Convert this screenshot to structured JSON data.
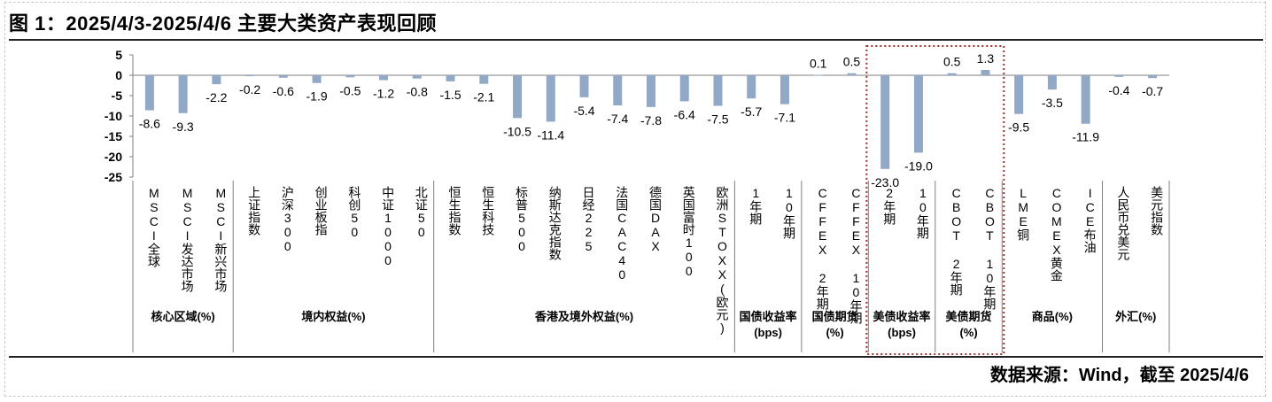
{
  "header": {
    "title": "图 1：2025/4/3-2025/4/6 主要大类资产表现回顾",
    "source": "数据来源：Wind，截至 2025/4/6"
  },
  "colors": {
    "bar": "#91a9c6",
    "highlight_border": "#a03030",
    "axis": "#7f7f7f"
  },
  "chart_data": {
    "type": "bar",
    "title": "",
    "xlabel": "",
    "ylabel": "",
    "ylim": [
      -25,
      5
    ],
    "yticks": [
      5,
      0,
      -5,
      -10,
      -15,
      -20,
      -25
    ],
    "grid": false,
    "legend": "none",
    "groups": [
      {
        "name": "核心区域(%)",
        "categories": [
          "MSCI全球",
          "MSCI发达市场",
          "MSCI新兴市场"
        ],
        "values": [
          -8.6,
          -9.3,
          -2.2
        ]
      },
      {
        "name": "境内权益(%)",
        "categories": [
          "上证指数",
          "沪深300",
          "创业板指",
          "科创50",
          "中证1000",
          "北证50"
        ],
        "values": [
          -0.2,
          -0.6,
          -1.9,
          -0.5,
          -1.2,
          -0.8
        ]
      },
      {
        "name": "香港及境外权益(%)",
        "categories": [
          "恒生指数",
          "恒生科技",
          "标普500",
          "纳斯达克指数",
          "日经225",
          "法国CAC40",
          "德国DAX",
          "英国富时100",
          "欧洲STOXX(欧元)"
        ],
        "values": [
          -1.5,
          -2.1,
          -10.5,
          -11.4,
          -5.4,
          -7.4,
          -7.8,
          -6.4,
          -7.5
        ]
      },
      {
        "name": "国债收益率(bps)",
        "categories": [
          "1年期",
          "10年期"
        ],
        "values": [
          -5.7,
          -7.1
        ]
      },
      {
        "name": "国债期货(%)",
        "categories": [
          "CFFEX 2年期",
          "CFFEX 10年期"
        ],
        "values": [
          0.1,
          0.5
        ]
      },
      {
        "name": "美债收益率(bps)",
        "categories": [
          "2年期",
          "10年期"
        ],
        "values": [
          -23.0,
          -19.0
        ]
      },
      {
        "name": "美债期货(%)",
        "categories": [
          "CBOT 2年期",
          "CBOT 10年期"
        ],
        "values": [
          0.5,
          1.3
        ]
      },
      {
        "name": "商品(%)",
        "categories": [
          "LME铜",
          "COMEX黄金",
          "ICE布油"
        ],
        "values": [
          -9.5,
          -3.5,
          -11.9
        ]
      },
      {
        "name": "外汇(%)",
        "categories": [
          "人民币兑美元",
          "美元指数"
        ],
        "values": [
          -0.4,
          -0.7
        ]
      }
    ],
    "highlight_groups": [
      "美债收益率(bps)",
      "美债期货(%)"
    ]
  }
}
